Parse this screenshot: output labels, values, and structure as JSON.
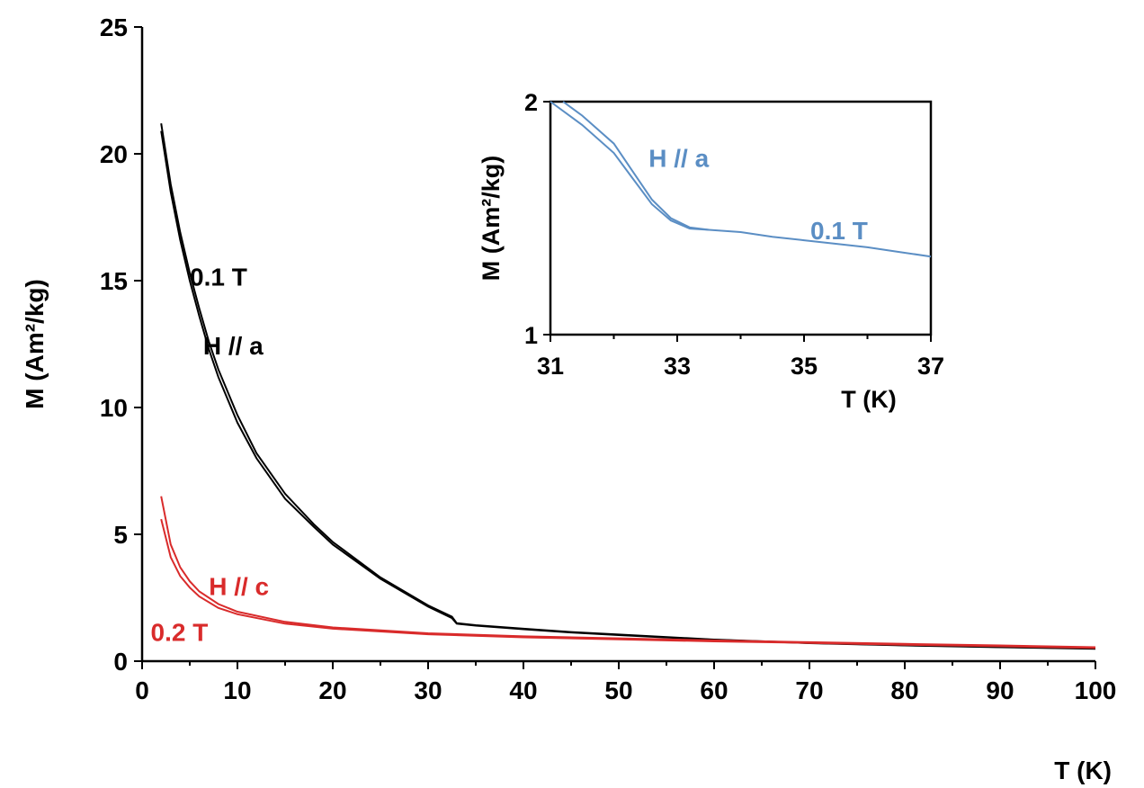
{
  "chart_data": [
    {
      "type": "line",
      "xlabel": "T (K)",
      "ylabel": "M (Am²/kg)",
      "xlim": [
        0,
        100
      ],
      "ylim": [
        0,
        25
      ],
      "xticks": [
        "0",
        "10",
        "20",
        "30",
        "40",
        "50",
        "60",
        "70",
        "80",
        "90",
        "100"
      ],
      "yticks": [
        "0",
        "5",
        "10",
        "15",
        "20",
        "25"
      ],
      "grid": false,
      "series": [
        {
          "color": "#000000",
          "x": [
            2,
            3,
            4,
            5,
            6,
            7,
            8,
            10,
            12,
            15,
            18,
            20,
            25,
            30,
            32.5,
            33,
            35,
            40,
            45,
            50,
            60,
            70,
            80,
            90,
            100
          ],
          "values": [
            21.2,
            18.8,
            16.9,
            15.3,
            13.9,
            12.6,
            11.5,
            9.7,
            8.2,
            6.6,
            5.4,
            4.7,
            3.3,
            2.2,
            1.75,
            1.5,
            1.42,
            1.28,
            1.15,
            1.05,
            0.85,
            0.72,
            0.63,
            0.56,
            0.5
          ]
        },
        {
          "color": "#000000",
          "x": [
            2,
            3,
            4,
            5,
            6,
            7,
            8,
            10,
            12,
            15,
            18,
            20,
            25,
            30,
            32.5,
            33,
            35,
            40,
            45,
            50,
            60,
            70,
            80,
            90,
            100
          ],
          "values": [
            20.9,
            18.5,
            16.6,
            15.0,
            13.6,
            12.3,
            11.2,
            9.4,
            8.0,
            6.4,
            5.3,
            4.6,
            3.25,
            2.15,
            1.7,
            1.48,
            1.4,
            1.26,
            1.13,
            1.03,
            0.84,
            0.71,
            0.62,
            0.55,
            0.49
          ]
        },
        {
          "color": "#d92b2b",
          "x": [
            2,
            3,
            4,
            5,
            6,
            8,
            10,
            15,
            20,
            30,
            40,
            50,
            60,
            70,
            80,
            90,
            100
          ],
          "values": [
            6.5,
            4.6,
            3.7,
            3.15,
            2.75,
            2.25,
            1.95,
            1.55,
            1.33,
            1.1,
            0.98,
            0.9,
            0.82,
            0.75,
            0.68,
            0.62,
            0.55
          ]
        },
        {
          "color": "#d92b2b",
          "x": [
            2,
            3,
            4,
            5,
            6,
            8,
            10,
            15,
            20,
            30,
            40,
            50,
            60,
            70,
            80,
            90,
            100
          ],
          "values": [
            5.6,
            4.1,
            3.35,
            2.9,
            2.55,
            2.1,
            1.85,
            1.48,
            1.28,
            1.06,
            0.94,
            0.86,
            0.78,
            0.72,
            0.65,
            0.59,
            0.52
          ]
        }
      ],
      "annotations": [
        {
          "text": "0.1 T",
          "x": 5,
          "y": 14.8,
          "color": "#000000"
        },
        {
          "text": "H // a",
          "x": 6.4,
          "y": 12.1,
          "color": "#000000"
        },
        {
          "text": "H // c",
          "x": 7,
          "y": 2.6,
          "color": "#d92b2b"
        },
        {
          "text": "0.2 T",
          "x": 0.9,
          "y": 0.8,
          "color": "#d92b2b"
        }
      ]
    },
    {
      "type": "line",
      "inset": true,
      "xlabel": "T (K)",
      "ylabel": "M (Am²/kg)",
      "xlim": [
        31,
        37
      ],
      "ylim": [
        1,
        2
      ],
      "xticks": [
        "31",
        "33",
        "35",
        "37"
      ],
      "yticks": [
        "1",
        "2"
      ],
      "series": [
        {
          "color": "#5b8ec4",
          "x": [
            31,
            31.5,
            32,
            32.3,
            32.6,
            32.9,
            33.2,
            33.5,
            34,
            34.5,
            35,
            35.5,
            36,
            36.5,
            37
          ],
          "values": [
            2.0,
            1.9,
            1.78,
            1.67,
            1.56,
            1.49,
            1.455,
            1.45,
            1.44,
            1.42,
            1.405,
            1.39,
            1.375,
            1.355,
            1.335
          ]
        },
        {
          "color": "#5b8ec4",
          "x": [
            31.2,
            31.5,
            32,
            32.3,
            32.6,
            32.9,
            33.2,
            33.5
          ],
          "values": [
            2.0,
            1.94,
            1.82,
            1.7,
            1.58,
            1.5,
            1.46,
            1.45
          ]
        }
      ],
      "annotations": [
        {
          "text": "H // a",
          "x": 32.55,
          "y": 1.72,
          "color": "#5b8ec4"
        },
        {
          "text": "0.1 T",
          "x": 35.1,
          "y": 1.41,
          "color": "#5b8ec4"
        }
      ]
    }
  ]
}
